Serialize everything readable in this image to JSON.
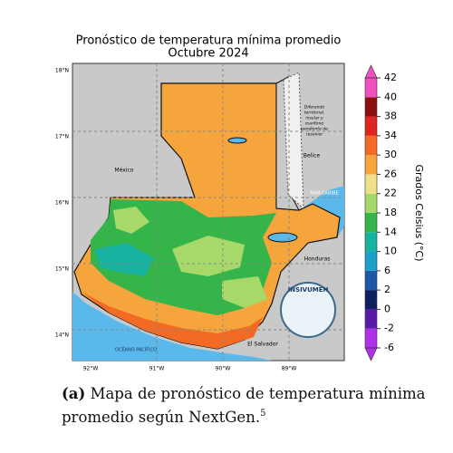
{
  "title": {
    "line1": "Pronóstico de temperatura mínima promedio",
    "line2": "Octubre 2024"
  },
  "lat_labels": [
    "18°N",
    "17°N",
    "16°N",
    "15°N",
    "14°N"
  ],
  "lon_labels": [
    "92°W",
    "91°W",
    "90°W",
    "89°W"
  ],
  "places": {
    "mexico": "México",
    "belize": "Belice",
    "caribbean": "MAR CARIBE",
    "honduras": "Honduras",
    "el_salvador": "El Salvador",
    "pacific": "OCÉANO PACÍFICO",
    "dispute": [
      "Diferendo",
      "territorial,",
      "insular y",
      "marítimo",
      "pendiente de",
      "resolver"
    ],
    "logo": "INSIVUMEH"
  },
  "colorbar": {
    "label": "Grados Celsius (°C)",
    "ticks": [
      -6,
      -2,
      0,
      2,
      6,
      10,
      14,
      18,
      22,
      26,
      30,
      34,
      38,
      40,
      42
    ],
    "colors": [
      "#b030e8",
      "#5a1aa8",
      "#0c1f5e",
      "#1d58a8",
      "#1ba0c8",
      "#17b3a0",
      "#35b44a",
      "#a6d96a",
      "#f0e08a",
      "#f6a43c",
      "#f36a24",
      "#e02420",
      "#8a1010",
      "#f24fc0"
    ]
  },
  "caption": {
    "label": "(a)",
    "text": "Mapa de pronóstico de temperatura mínima promedio según NextGen.",
    "note": "5"
  }
}
